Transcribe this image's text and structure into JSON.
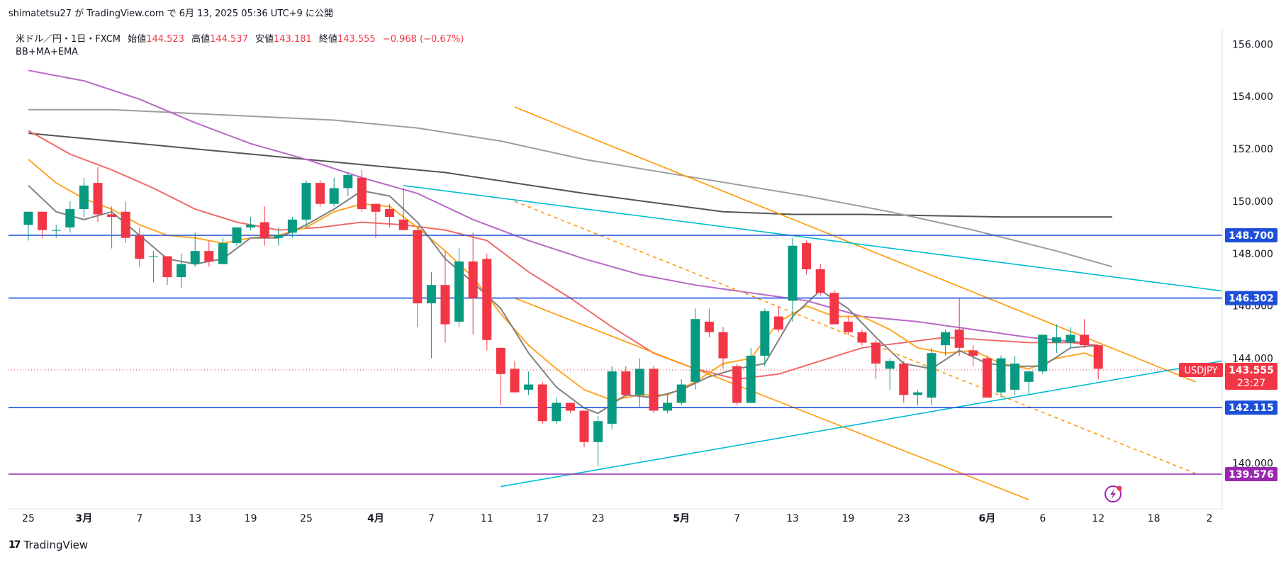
{
  "header": {
    "publish_line": "shimatetsu27 が TradingView.com で 6月 13, 2025 05:36 UTC+9 に公開"
  },
  "legend": {
    "symbol": "米ドル／円・1日・FXCM",
    "open_label": "始値",
    "open": "144.523",
    "high_label": "高値",
    "high": "144.537",
    "low_label": "安値",
    "low": "143.181",
    "close_label": "終値",
    "close": "143.555",
    "change": "−0.968 (−0.67%)",
    "indicators": "BB+MA+EMA"
  },
  "footer": {
    "brand": "TradingView",
    "logo_text": "17"
  },
  "price_tag": {
    "symbol": "USDJPY",
    "price": "143.555",
    "countdown": "23:27"
  },
  "colors": {
    "up": "#089981",
    "down": "#f23645",
    "hline": "#1e4fd8",
    "support_purple": "#9c27b0",
    "orange": "#ff9800",
    "cyan": "#00bcd4",
    "ema_orange": "#ffa726",
    "sma_red": "#f06a6a",
    "ma_purple": "#ba68c8",
    "ma_gray": "#9e9e9e",
    "ma_dark": "#555555",
    "ma_short_gray": "#808080"
  },
  "chart_data": {
    "type": "candlestick",
    "y_ticks": [
      140,
      142,
      144,
      146,
      148,
      150,
      152,
      154,
      156
    ],
    "ylim": [
      138.5,
      157.0
    ],
    "x_ticks": [
      {
        "i": 0,
        "label": "25"
      },
      {
        "i": 4,
        "label": "3月"
      },
      {
        "i": 8,
        "label": "7"
      },
      {
        "i": 12,
        "label": "13"
      },
      {
        "i": 16,
        "label": "19"
      },
      {
        "i": 20,
        "label": "25"
      },
      {
        "i": 25,
        "label": "4月"
      },
      {
        "i": 29,
        "label": "7"
      },
      {
        "i": 33,
        "label": "11"
      },
      {
        "i": 37,
        "label": "17"
      },
      {
        "i": 41,
        "label": "23"
      },
      {
        "i": 47,
        "label": "5月"
      },
      {
        "i": 51,
        "label": "7"
      },
      {
        "i": 55,
        "label": "13"
      },
      {
        "i": 59,
        "label": "19"
      },
      {
        "i": 63,
        "label": "23"
      },
      {
        "i": 69,
        "label": "6月"
      },
      {
        "i": 73,
        "label": "6"
      },
      {
        "i": 77,
        "label": "12"
      },
      {
        "i": 81,
        "label": "18"
      },
      {
        "i": 85,
        "label": "2"
      }
    ],
    "candles": [
      [
        149.1,
        149.6,
        148.5,
        149.6
      ],
      [
        149.6,
        149.6,
        148.6,
        148.9
      ],
      [
        148.9,
        149.1,
        148.6,
        148.9
      ],
      [
        149.0,
        150.0,
        148.8,
        149.7
      ],
      [
        149.7,
        150.9,
        149.4,
        150.6
      ],
      [
        150.7,
        151.3,
        149.2,
        149.5
      ],
      [
        149.5,
        149.8,
        148.2,
        149.4
      ],
      [
        149.6,
        150.0,
        148.4,
        148.6
      ],
      [
        148.7,
        149.0,
        147.5,
        147.8
      ],
      [
        147.9,
        148.1,
        146.9,
        147.9
      ],
      [
        147.9,
        147.9,
        146.8,
        147.1
      ],
      [
        147.1,
        148.0,
        146.7,
        147.6
      ],
      [
        147.6,
        148.8,
        147.5,
        148.1
      ],
      [
        148.1,
        148.5,
        147.5,
        147.7
      ],
      [
        147.6,
        148.6,
        147.6,
        148.4
      ],
      [
        148.4,
        149.0,
        148.3,
        149.0
      ],
      [
        149.0,
        149.4,
        148.9,
        149.1
      ],
      [
        149.2,
        149.8,
        148.3,
        148.6
      ],
      [
        148.6,
        149.0,
        148.3,
        148.7
      ],
      [
        148.8,
        149.4,
        148.6,
        149.3
      ],
      [
        149.3,
        150.8,
        149.0,
        150.7
      ],
      [
        150.7,
        150.8,
        149.8,
        149.9
      ],
      [
        149.9,
        150.9,
        149.8,
        150.5
      ],
      [
        150.5,
        151.1,
        150.2,
        151.0
      ],
      [
        150.9,
        151.2,
        149.6,
        149.7
      ],
      [
        149.9,
        149.9,
        148.6,
        149.6
      ],
      [
        149.7,
        149.9,
        149.0,
        149.4
      ],
      [
        149.3,
        150.5,
        149.0,
        148.9
      ],
      [
        148.9,
        149.0,
        145.2,
        146.1
      ],
      [
        146.1,
        147.3,
        144.0,
        146.8
      ],
      [
        146.8,
        148.1,
        144.6,
        145.3
      ],
      [
        145.4,
        148.2,
        145.2,
        147.7
      ],
      [
        147.7,
        148.8,
        144.9,
        146.3
      ],
      [
        147.8,
        148.0,
        144.3,
        144.7
      ],
      [
        144.4,
        144.4,
        142.2,
        143.4
      ],
      [
        143.6,
        143.9,
        142.7,
        142.7
      ],
      [
        142.8,
        143.5,
        142.6,
        143.0
      ],
      [
        143.0,
        143.1,
        141.5,
        141.6
      ],
      [
        141.6,
        142.5,
        141.5,
        142.3
      ],
      [
        142.3,
        142.3,
        141.9,
        142.0
      ],
      [
        142.0,
        142.0,
        140.6,
        140.8
      ],
      [
        140.8,
        141.8,
        139.9,
        141.6
      ],
      [
        141.5,
        143.7,
        141.3,
        143.5
      ],
      [
        143.5,
        143.7,
        142.5,
        142.6
      ],
      [
        142.6,
        144.0,
        142.1,
        143.6
      ],
      [
        143.6,
        143.7,
        141.9,
        142.0
      ],
      [
        142.0,
        142.6,
        141.9,
        142.3
      ],
      [
        142.3,
        143.2,
        142.2,
        143.0
      ],
      [
        143.1,
        145.9,
        142.8,
        145.5
      ],
      [
        145.4,
        145.9,
        144.8,
        145.0
      ],
      [
        145.0,
        145.2,
        143.6,
        144.0
      ],
      [
        143.7,
        143.8,
        142.2,
        142.3
      ],
      [
        142.3,
        144.4,
        142.3,
        144.1
      ],
      [
        144.1,
        145.9,
        143.7,
        145.8
      ],
      [
        145.6,
        146.0,
        145.0,
        145.1
      ],
      [
        146.2,
        148.6,
        145.4,
        148.3
      ],
      [
        148.4,
        148.5,
        147.2,
        147.4
      ],
      [
        147.4,
        147.6,
        146.4,
        146.5
      ],
      [
        146.5,
        146.6,
        145.3,
        145.3
      ],
      [
        145.4,
        145.6,
        144.9,
        145.0
      ],
      [
        145.0,
        145.1,
        144.5,
        144.6
      ],
      [
        144.6,
        144.7,
        143.2,
        143.8
      ],
      [
        143.6,
        144.0,
        142.8,
        143.9
      ],
      [
        143.8,
        143.9,
        142.3,
        142.6
      ],
      [
        142.6,
        142.8,
        142.2,
        142.7
      ],
      [
        142.5,
        144.4,
        142.2,
        144.2
      ],
      [
        144.5,
        145.1,
        144.1,
        145.0
      ],
      [
        145.1,
        146.3,
        144.1,
        144.4
      ],
      [
        144.3,
        144.5,
        143.7,
        144.1
      ],
      [
        144.0,
        144.1,
        142.5,
        142.5
      ],
      [
        142.7,
        144.1,
        142.5,
        144.0
      ],
      [
        142.8,
        144.1,
        142.6,
        143.8
      ],
      [
        143.1,
        143.5,
        142.6,
        143.5
      ],
      [
        143.5,
        144.9,
        143.4,
        144.9
      ],
      [
        144.6,
        145.3,
        144.2,
        144.8
      ],
      [
        144.6,
        145.2,
        144.4,
        144.9
      ],
      [
        144.9,
        145.5,
        144.4,
        144.5
      ],
      [
        144.5,
        144.5,
        143.2,
        143.6
      ]
    ],
    "horizontal_levels": [
      {
        "value": 148.7,
        "label": "148.700",
        "color": "#1e4fd8"
      },
      {
        "value": 146.302,
        "label": "146.302",
        "color": "#1e4fd8"
      },
      {
        "value": 142.115,
        "label": "142.115",
        "color": "#1e4fd8"
      },
      {
        "value": 139.576,
        "label": "139.576",
        "color": "#9c27b0"
      }
    ],
    "trendlines": [
      {
        "color": "#ff9800",
        "p1": [
          35,
          153.6
        ],
        "p2": [
          84,
          143.1
        ],
        "dash": false
      },
      {
        "color": "#ff9800",
        "p1": [
          35,
          146.3
        ],
        "p2": [
          72,
          138.6
        ],
        "dash": false
      },
      {
        "color": "#ff9800",
        "p1": [
          35,
          150.0
        ],
        "p2": [
          84,
          139.6
        ],
        "dash": true
      },
      {
        "color": "#00bcd4",
        "p1": [
          27,
          150.6
        ],
        "p2": [
          87,
          146.5
        ],
        "dash": false
      },
      {
        "color": "#00bcd4",
        "p1": [
          34,
          139.1
        ],
        "p2": [
          87,
          144.0
        ],
        "dash": false
      }
    ],
    "moving_averages": [
      {
        "color": "#555555",
        "points": [
          [
            0,
            152.6
          ],
          [
            10,
            152.1
          ],
          [
            20,
            151.6
          ],
          [
            30,
            151.1
          ],
          [
            40,
            150.3
          ],
          [
            50,
            149.6
          ],
          [
            55,
            149.5
          ],
          [
            60,
            149.5
          ],
          [
            70,
            149.4
          ],
          [
            78,
            149.4
          ]
        ]
      },
      {
        "color": "#9e9e9e",
        "points": [
          [
            0,
            153.5
          ],
          [
            6,
            153.5
          ],
          [
            14,
            153.3
          ],
          [
            22,
            153.1
          ],
          [
            28,
            152.8
          ],
          [
            34,
            152.3
          ],
          [
            40,
            151.6
          ],
          [
            48,
            150.9
          ],
          [
            56,
            150.2
          ],
          [
            62,
            149.6
          ],
          [
            68,
            148.9
          ],
          [
            74,
            148.1
          ],
          [
            78,
            147.5
          ]
        ]
      },
      {
        "color": "#ba68c8",
        "points": [
          [
            0,
            155.0
          ],
          [
            4,
            154.6
          ],
          [
            8,
            153.9
          ],
          [
            12,
            153.0
          ],
          [
            16,
            152.2
          ],
          [
            20,
            151.6
          ],
          [
            24,
            150.9
          ],
          [
            28,
            150.3
          ],
          [
            32,
            149.3
          ],
          [
            36,
            148.5
          ],
          [
            40,
            147.8
          ],
          [
            44,
            147.2
          ],
          [
            48,
            146.8
          ],
          [
            52,
            146.5
          ],
          [
            56,
            146.2
          ],
          [
            60,
            145.6
          ],
          [
            64,
            145.4
          ],
          [
            68,
            145.1
          ],
          [
            72,
            144.8
          ],
          [
            76,
            144.6
          ],
          [
            77,
            144.4
          ]
        ]
      },
      {
        "color": "#f06a6a",
        "points": [
          [
            0,
            152.7
          ],
          [
            3,
            151.8
          ],
          [
            6,
            151.2
          ],
          [
            9,
            150.5
          ],
          [
            12,
            149.7
          ],
          [
            15,
            149.2
          ],
          [
            18,
            148.9
          ],
          [
            21,
            149.0
          ],
          [
            24,
            149.2
          ],
          [
            27,
            149.1
          ],
          [
            30,
            148.9
          ],
          [
            33,
            148.5
          ],
          [
            36,
            147.3
          ],
          [
            39,
            146.3
          ],
          [
            42,
            145.2
          ],
          [
            45,
            144.2
          ],
          [
            48,
            143.6
          ],
          [
            51,
            143.2
          ],
          [
            54,
            143.4
          ],
          [
            57,
            143.9
          ],
          [
            60,
            144.4
          ],
          [
            63,
            144.6
          ],
          [
            66,
            144.8
          ],
          [
            69,
            144.7
          ],
          [
            72,
            144.6
          ],
          [
            75,
            144.6
          ],
          [
            77,
            144.5
          ]
        ]
      },
      {
        "color": "#ffa726",
        "points": [
          [
            0,
            151.6
          ],
          [
            2,
            150.7
          ],
          [
            4,
            150.1
          ],
          [
            6,
            149.7
          ],
          [
            8,
            149.1
          ],
          [
            10,
            148.7
          ],
          [
            12,
            148.6
          ],
          [
            14,
            148.4
          ],
          [
            16,
            148.6
          ],
          [
            18,
            148.7
          ],
          [
            20,
            149.0
          ],
          [
            22,
            149.6
          ],
          [
            24,
            149.9
          ],
          [
            26,
            149.8
          ],
          [
            28,
            149.0
          ],
          [
            30,
            148.1
          ],
          [
            32,
            147.1
          ],
          [
            34,
            145.7
          ],
          [
            36,
            144.5
          ],
          [
            38,
            143.6
          ],
          [
            40,
            142.8
          ],
          [
            42,
            142.4
          ],
          [
            44,
            142.6
          ],
          [
            46,
            142.6
          ],
          [
            48,
            143.1
          ],
          [
            50,
            143.8
          ],
          [
            52,
            144.0
          ],
          [
            54,
            145.4
          ],
          [
            56,
            146.0
          ],
          [
            58,
            145.6
          ],
          [
            60,
            145.6
          ],
          [
            62,
            145.1
          ],
          [
            64,
            144.4
          ],
          [
            66,
            144.2
          ],
          [
            68,
            144.3
          ],
          [
            70,
            143.8
          ],
          [
            72,
            143.6
          ],
          [
            74,
            144.0
          ],
          [
            76,
            144.2
          ],
          [
            77,
            144.0
          ]
        ]
      },
      {
        "color": "#808080",
        "points": [
          [
            0,
            150.6
          ],
          [
            2,
            149.6
          ],
          [
            4,
            149.3
          ],
          [
            6,
            149.6
          ],
          [
            8,
            148.7
          ],
          [
            10,
            147.8
          ],
          [
            12,
            147.6
          ],
          [
            14,
            147.8
          ],
          [
            16,
            148.6
          ],
          [
            18,
            148.6
          ],
          [
            20,
            149.1
          ],
          [
            22,
            149.7
          ],
          [
            24,
            150.4
          ],
          [
            26,
            150.2
          ],
          [
            28,
            149.2
          ],
          [
            30,
            147.8
          ],
          [
            32,
            146.9
          ],
          [
            34,
            145.9
          ],
          [
            36,
            144.2
          ],
          [
            38,
            142.9
          ],
          [
            40,
            142.1
          ],
          [
            41,
            141.9
          ],
          [
            43,
            142.6
          ],
          [
            45,
            142.5
          ],
          [
            47,
            142.8
          ],
          [
            49,
            143.3
          ],
          [
            51,
            143.6
          ],
          [
            53,
            143.8
          ],
          [
            55,
            145.6
          ],
          [
            57,
            146.6
          ],
          [
            59,
            145.9
          ],
          [
            61,
            144.8
          ],
          [
            63,
            143.8
          ],
          [
            65,
            143.6
          ],
          [
            67,
            144.3
          ],
          [
            69,
            143.8
          ],
          [
            71,
            143.7
          ],
          [
            73,
            143.7
          ],
          [
            75,
            144.4
          ],
          [
            77,
            144.5
          ]
        ]
      }
    ],
    "last_price": 143.555
  }
}
